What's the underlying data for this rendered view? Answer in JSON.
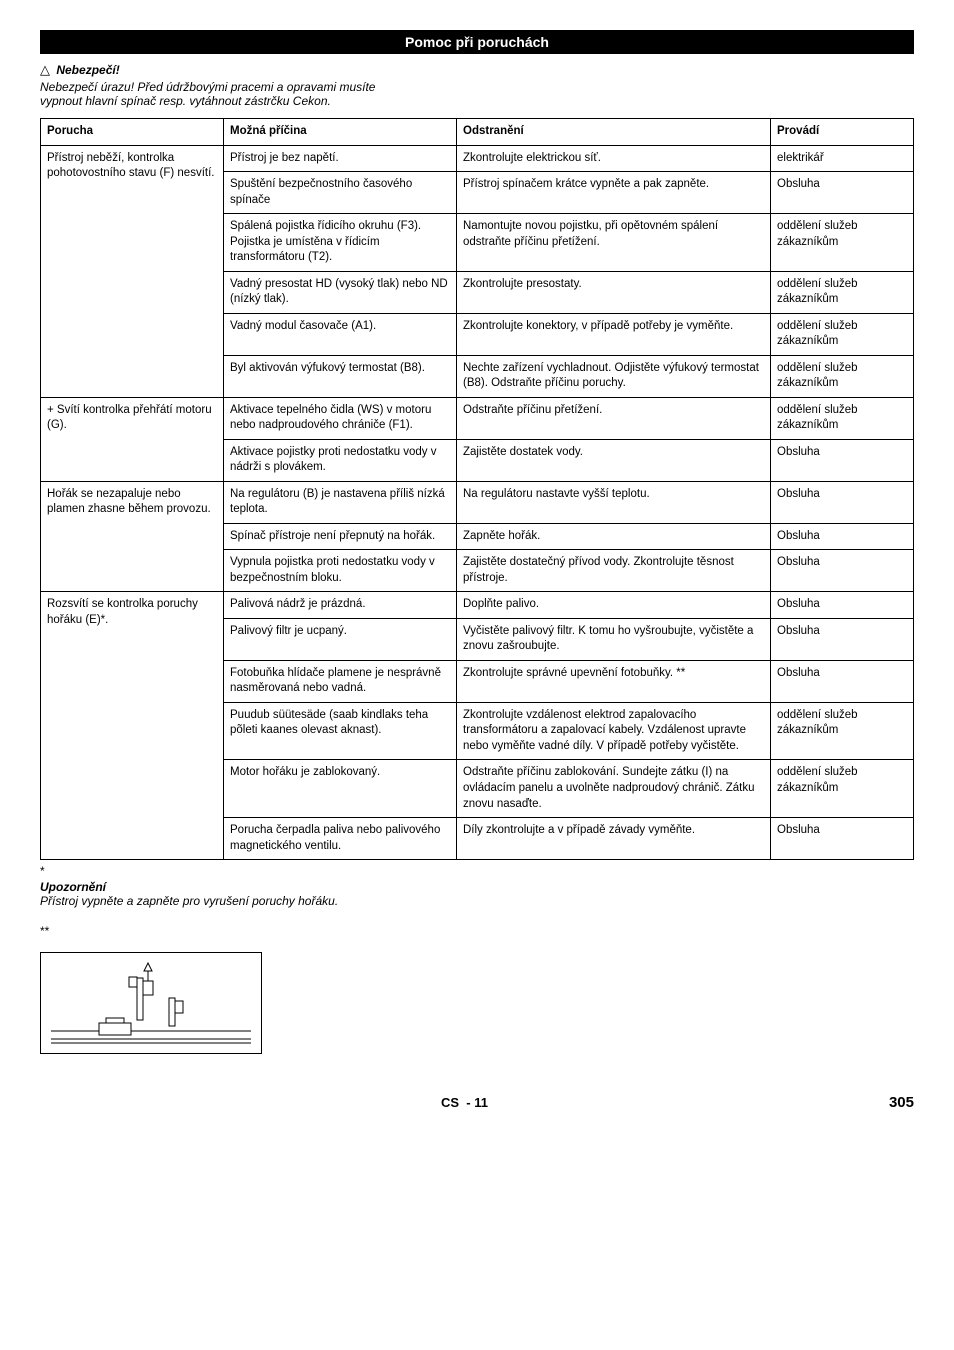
{
  "header": {
    "title": "Pomoc při poruchách"
  },
  "warning": {
    "icon": "△",
    "label": "Nebezpečí!",
    "text1": "Nebezpečí úrazu! Před údržbovými pracemi a opravami musíte",
    "text2": "vypnout hlavní spínač resp. vytáhnout zástrčku Cekon."
  },
  "table": {
    "headers": {
      "fault": "Porucha",
      "cause": "Možná příčina",
      "remedy": "Odstranění",
      "who": "Provádí"
    },
    "groups": [
      {
        "fault": "Přístroj neběží, kontrolka pohotovostního stavu (F) nesvítí.",
        "rows": [
          {
            "cause": "Přístroj je bez napětí.",
            "remedy": "Zkontrolujte elektrickou síť.",
            "who": "elektrikář"
          },
          {
            "cause": "Spuštění bezpečnostního časového spínače",
            "remedy": "Přístroj spínačem krátce vypněte a pak zapněte.",
            "who": "Obsluha"
          },
          {
            "cause": "Spálená pojistka řídicího okruhu (F3). Pojistka je umístěna v řídicím transformátoru (T2).",
            "remedy": "Namontujte novou pojistku, při opětovném spálení odstraňte příčinu přetížení.",
            "who": "oddělení služeb zákazníkům"
          },
          {
            "cause": "Vadný presostat HD (vysoký tlak) nebo ND (nízký tlak).",
            "remedy": "Zkontrolujte presostaty.",
            "who": "oddělení služeb zákazníkům"
          },
          {
            "cause": "Vadný modul časovače (A1).",
            "remedy": "Zkontrolujte konektory, v případě potřeby je vyměňte.",
            "who": "oddělení služeb zákazníkům"
          },
          {
            "cause": "Byl aktivován výfukový termostat (B8).",
            "remedy": "Nechte zařízení vychladnout. Odjistěte výfukový termostat (B8). Odstraňte příčinu poruchy.",
            "who": "oddělení služeb zákazníkům"
          }
        ]
      },
      {
        "fault": "+ Svítí kontrolka přehřátí motoru (G).",
        "rows": [
          {
            "cause": "Aktivace tepelného čidla (WS) v motoru nebo nadproudového chrániče (F1).",
            "remedy": "Odstraňte příčinu přetížení.",
            "who": "oddělení služeb zákazníkům"
          },
          {
            "cause": "Aktivace pojistky proti nedostatku vody v nádrži s plovákem.",
            "remedy": "Zajistěte dostatek vody.",
            "who": "Obsluha"
          }
        ]
      },
      {
        "fault": "Hořák se nezapaluje nebo plamen zhasne během provozu.",
        "rows": [
          {
            "cause": "Na regulátoru (B) je nastavena příliš nízká teplota.",
            "remedy": "Na regulátoru nastavte vyšší teplotu.",
            "who": "Obsluha"
          },
          {
            "cause": "Spínač přístroje není přepnutý na hořák.",
            "remedy": "Zapněte hořák.",
            "who": "Obsluha"
          },
          {
            "cause": "Vypnula pojistka proti nedostatku vody v bezpečnostním bloku.",
            "remedy": "Zajistěte dostatečný přívod vody. Zkontrolujte těsnost přístroje.",
            "who": "Obsluha"
          }
        ]
      },
      {
        "fault": "Rozsvítí se kontrolka poruchy hořáku (E)*.",
        "rows": [
          {
            "cause": "Palivová nádrž je prázdná.",
            "remedy": "Doplňte palivo.",
            "who": "Obsluha"
          },
          {
            "cause": "Palivový filtr je ucpaný.",
            "remedy": "Vyčistěte palivový filtr. K tomu ho vyšroubujte, vyčistěte a znovu zašroubujte.",
            "who": "Obsluha"
          },
          {
            "cause": "Fotobuňka hlídače plamene je nesprávně nasměrovaná nebo vadná.",
            "remedy": "Zkontrolujte správné upevnění fotobuňky. **",
            "who": "Obsluha"
          },
          {
            "cause": "Puudub süütesäde (saab kindlaks teha põleti kaanes olevast aknast).",
            "remedy": "Zkontrolujte vzdálenost elektrod zapalovacího transformátoru a zapalovací kabely. Vzdálenost upravte nebo vyměňte vadné díly. V případě potřeby vyčistěte.",
            "who": "oddělení služeb zákazníkům"
          },
          {
            "cause": "Motor hořáku je zablokovaný.",
            "remedy": "Odstraňte příčinu zablokování. Sundejte zátku (I) na ovládacím panelu a uvolněte nadproudový chránič. Zátku znovu nasaďte.",
            "who": "oddělení služeb zákazníkům"
          },
          {
            "cause": "Porucha čerpadla paliva nebo palivového magnetického ventilu.",
            "remedy": "Díly zkontrolujte a v případě závady vyměňte.",
            "who": "Obsluha"
          }
        ]
      }
    ]
  },
  "notes": {
    "star": "*",
    "noteLabel": "Upozornění",
    "noteText": "Přístroj vypněte a zapněte pro vyrušení poruchy hořáku.",
    "doubleStar": "**"
  },
  "footer": {
    "lang": "CS",
    "dash": "-",
    "page": "11",
    "absPage": "305"
  }
}
